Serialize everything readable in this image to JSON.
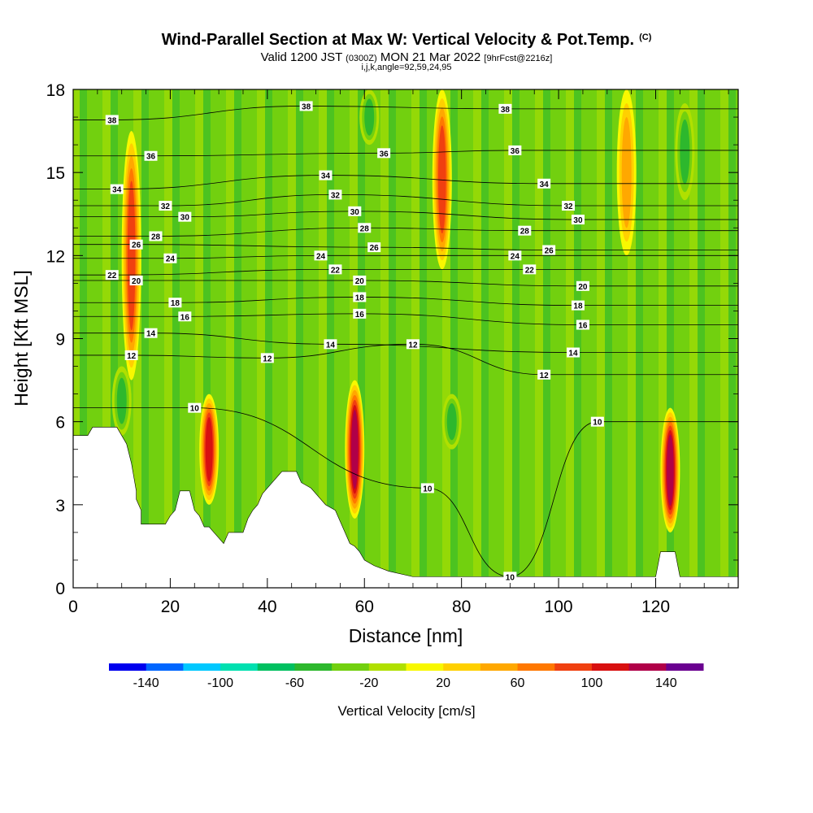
{
  "header": {
    "title": "Wind-Parallel Section at Max W: Vertical Velocity & Pot.Temp.",
    "title_mark": "(C)",
    "subtitle_a": "Valid 1200 JST",
    "subtitle_b": "(0300Z)",
    "subtitle_c": "MON 21 Mar 2022",
    "subtitle_d": "[9hrFcst@2216z]",
    "subtitle2": "i,j,k,angle=92,59,24,95"
  },
  "chart_data": {
    "type": "heatmap",
    "xlabel": "Distance [nm]",
    "ylabel": "Height [Kft MSL]",
    "xlim": [
      0,
      137
    ],
    "ylim": [
      0,
      18
    ],
    "x_ticks": [
      "0",
      "20",
      "40",
      "60",
      "80",
      "100",
      "120"
    ],
    "y_ticks": [
      "0",
      "3",
      "6",
      "9",
      "12",
      "15",
      "18"
    ],
    "colorbar": {
      "title": "Vertical Velocity [cm/s]",
      "tick_labels": [
        "-140",
        "-100",
        "-60",
        "-20",
        "20",
        "60",
        "100",
        "140"
      ],
      "boundaries": [
        -160,
        -140,
        -120,
        -100,
        -80,
        -60,
        -40,
        -20,
        0,
        20,
        40,
        60,
        80,
        100,
        120,
        140,
        160
      ],
      "colors": [
        "#0000ee",
        "#0066ff",
        "#00c8ff",
        "#00e0b0",
        "#00c060",
        "#2db82d",
        "#72d00f",
        "#b0e000",
        "#f8f800",
        "#ffd000",
        "#ffa800",
        "#ff7800",
        "#f04010",
        "#d81010",
        "#b00048",
        "#6a0090"
      ]
    },
    "updraft_cores": [
      {
        "x": 12,
        "y_bottom": 7.5,
        "y_top": 16.5,
        "w": 110
      },
      {
        "x": 28,
        "y_bottom": 3.0,
        "y_top": 7.0,
        "w": 130
      },
      {
        "x": 58,
        "y_bottom": 2.5,
        "y_top": 7.5,
        "w": 150
      },
      {
        "x": 76,
        "y_bottom": 11.5,
        "y_top": 18.0,
        "w": 100
      },
      {
        "x": 114,
        "y_bottom": 12.0,
        "y_top": 18.0,
        "w": 60
      },
      {
        "x": 123,
        "y_bottom": 2.0,
        "y_top": 6.5,
        "w": 150
      }
    ],
    "downdraft_cores": [
      {
        "x": 10,
        "y_bottom": 5.5,
        "y_top": 8.0,
        "w": -70
      },
      {
        "x": 61,
        "y_bottom": 16.0,
        "y_top": 18.0,
        "w": -60
      },
      {
        "x": 78,
        "y_bottom": 5.0,
        "y_top": 7.0,
        "w": -70
      },
      {
        "x": 126,
        "y_bottom": 14.0,
        "y_top": 17.5,
        "w": -60
      }
    ],
    "terrain_top": [
      [
        0,
        5.5
      ],
      [
        3,
        5.5
      ],
      [
        4,
        5.8
      ],
      [
        9,
        5.8
      ],
      [
        10,
        5.5
      ],
      [
        11,
        5.2
      ],
      [
        12,
        4.5
      ],
      [
        13,
        3.5
      ],
      [
        13,
        3.2
      ],
      [
        14,
        2.8
      ],
      [
        14,
        2.3
      ],
      [
        19,
        2.3
      ],
      [
        20,
        2.6
      ],
      [
        21,
        2.8
      ],
      [
        22,
        3.5
      ],
      [
        24,
        3.5
      ],
      [
        25,
        2.8
      ],
      [
        26,
        2.6
      ],
      [
        27,
        2.2
      ],
      [
        28,
        2.2
      ],
      [
        29,
        2.0
      ],
      [
        30,
        1.8
      ],
      [
        31,
        1.6
      ],
      [
        32,
        2.0
      ],
      [
        35,
        2.0
      ],
      [
        36,
        2.5
      ],
      [
        37,
        2.8
      ],
      [
        38,
        3.0
      ],
      [
        39,
        3.4
      ],
      [
        41,
        3.8
      ],
      [
        43,
        4.2
      ],
      [
        46,
        4.2
      ],
      [
        47,
        3.8
      ],
      [
        49,
        3.6
      ],
      [
        51,
        3.2
      ],
      [
        52,
        3.0
      ],
      [
        54,
        2.8
      ],
      [
        55,
        2.4
      ],
      [
        56,
        2.0
      ],
      [
        57,
        1.6
      ],
      [
        58,
        1.5
      ],
      [
        59,
        1.3
      ],
      [
        60,
        1.0
      ],
      [
        62,
        0.8
      ],
      [
        65,
        0.6
      ],
      [
        70,
        0.4
      ],
      [
        85,
        0.4
      ],
      [
        100,
        0.4
      ],
      [
        120,
        0.4
      ],
      [
        121,
        1.3
      ],
      [
        124,
        1.3
      ],
      [
        125,
        0.4
      ],
      [
        137,
        0.4
      ]
    ],
    "theta_contours": [
      {
        "label": "10",
        "x": 25,
        "y": 6.5
      },
      {
        "label": "10",
        "x": 73,
        "y": 3.6
      },
      {
        "label": "10",
        "x": 90,
        "y": 0.4
      },
      {
        "label": "10",
        "x": 108,
        "y": 6.0
      },
      {
        "label": "12",
        "x": 12,
        "y": 8.4
      },
      {
        "label": "12",
        "x": 40,
        "y": 8.3
      },
      {
        "label": "12",
        "x": 70,
        "y": 8.8
      },
      {
        "label": "12",
        "x": 97,
        "y": 7.7
      },
      {
        "label": "14",
        "x": 16,
        "y": 9.2
      },
      {
        "label": "14",
        "x": 53,
        "y": 8.8
      },
      {
        "label": "14",
        "x": 103,
        "y": 8.5
      },
      {
        "label": "16",
        "x": 23,
        "y": 9.8
      },
      {
        "label": "16",
        "x": 59,
        "y": 9.9
      },
      {
        "label": "16",
        "x": 105,
        "y": 9.5
      },
      {
        "label": "18",
        "x": 21,
        "y": 10.3
      },
      {
        "label": "18",
        "x": 59,
        "y": 10.5
      },
      {
        "label": "18",
        "x": 104,
        "y": 10.2
      },
      {
        "label": "20",
        "x": 13,
        "y": 11.1
      },
      {
        "label": "20",
        "x": 59,
        "y": 11.1
      },
      {
        "label": "20",
        "x": 105,
        "y": 10.9
      },
      {
        "label": "22",
        "x": 8,
        "y": 11.3
      },
      {
        "label": "22",
        "x": 54,
        "y": 11.5
      },
      {
        "label": "22",
        "x": 94,
        "y": 11.5
      },
      {
        "label": "24",
        "x": 20,
        "y": 11.9
      },
      {
        "label": "24",
        "x": 51,
        "y": 12.0
      },
      {
        "label": "24",
        "x": 91,
        "y": 12.0
      },
      {
        "label": "26",
        "x": 13,
        "y": 12.4
      },
      {
        "label": "26",
        "x": 62,
        "y": 12.3
      },
      {
        "label": "26",
        "x": 98,
        "y": 12.2
      },
      {
        "label": "28",
        "x": 17,
        "y": 12.7
      },
      {
        "label": "28",
        "x": 60,
        "y": 13.0
      },
      {
        "label": "28",
        "x": 93,
        "y": 12.9
      },
      {
        "label": "30",
        "x": 23,
        "y": 13.4
      },
      {
        "label": "30",
        "x": 58,
        "y": 13.6
      },
      {
        "label": "30",
        "x": 104,
        "y": 13.3
      },
      {
        "label": "32",
        "x": 19,
        "y": 13.8
      },
      {
        "label": "32",
        "x": 54,
        "y": 14.2
      },
      {
        "label": "32",
        "x": 102,
        "y": 13.8
      },
      {
        "label": "34",
        "x": 9,
        "y": 14.4
      },
      {
        "label": "34",
        "x": 52,
        "y": 14.9
      },
      {
        "label": "34",
        "x": 97,
        "y": 14.6
      },
      {
        "label": "36",
        "x": 16,
        "y": 15.6
      },
      {
        "label": "36",
        "x": 64,
        "y": 15.7
      },
      {
        "label": "36",
        "x": 91,
        "y": 15.8
      },
      {
        "label": "38",
        "x": 8,
        "y": 16.9
      },
      {
        "label": "38",
        "x": 48,
        "y": 17.4
      },
      {
        "label": "38",
        "x": 89,
        "y": 17.3
      }
    ]
  }
}
